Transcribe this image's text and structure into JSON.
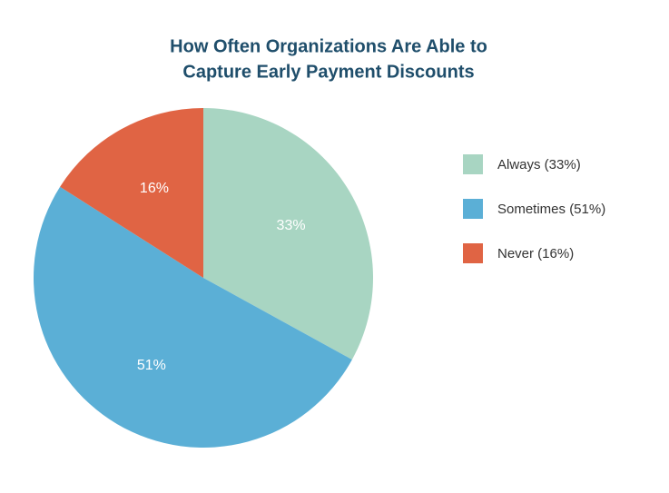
{
  "chart_data": {
    "type": "pie",
    "title": [
      "How Often Organizations Are Able to",
      "Capture Early Payment Discounts"
    ],
    "categories": [
      "Always (33%)",
      "Sometimes (51%)",
      "Never (16%)"
    ],
    "values": [
      33,
      51,
      16
    ],
    "value_labels": [
      "33%",
      "51%",
      "16%"
    ],
    "colors": [
      "#a8d5c2",
      "#5bafd6",
      "#e06444"
    ],
    "legend": "right"
  }
}
